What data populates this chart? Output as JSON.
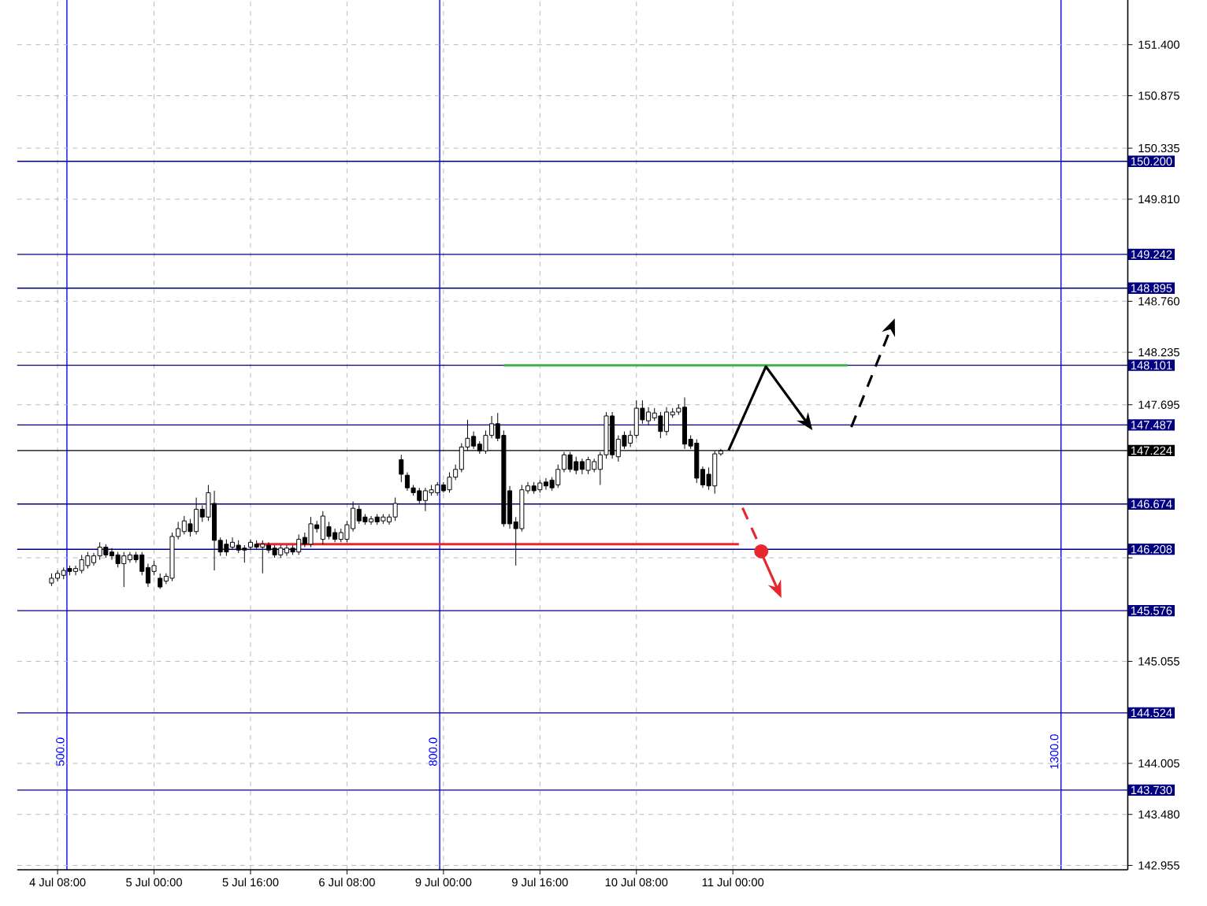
{
  "chart_data": {
    "type": "candlestick",
    "categories": [
      null,
      "4 Jul 08:00",
      null,
      null,
      null,
      null,
      null,
      null,
      null,
      null,
      null,
      null,
      null,
      null,
      null,
      null,
      null,
      "5 Jul 00:00",
      null,
      null,
      null,
      null,
      null,
      null,
      null,
      null,
      null,
      null,
      null,
      null,
      null,
      null,
      null,
      "5 Jul 16:00",
      null,
      null,
      null,
      null,
      null,
      null,
      null,
      null,
      null,
      null,
      null,
      null,
      null,
      null,
      null,
      "6 Jul 08:00",
      null,
      null,
      null,
      null,
      null,
      null,
      null,
      null,
      null,
      null,
      null,
      null,
      null,
      null,
      null,
      "9 Jul 00:00",
      null,
      null,
      null,
      null,
      null,
      null,
      null,
      null,
      null,
      null,
      null,
      null,
      null,
      null,
      null,
      "9 Jul 16:00",
      null,
      null,
      null,
      null,
      null,
      null,
      null,
      null,
      null,
      null,
      null,
      null,
      null,
      null,
      null,
      "10 Jul 08:00",
      null,
      null,
      null,
      null,
      null,
      null,
      null,
      null,
      null,
      null,
      null,
      null,
      null,
      null,
      null,
      "11 Jul 00:00",
      null,
      null,
      null,
      null,
      null,
      null,
      null,
      null,
      null,
      null,
      null,
      null,
      null,
      null,
      null,
      null,
      null,
      null,
      null,
      null,
      null,
      null,
      null,
      null,
      null,
      null,
      null,
      null,
      null,
      null,
      null,
      null,
      null,
      null,
      null,
      null,
      null,
      null,
      null,
      null,
      null,
      null,
      null,
      null,
      null,
      null,
      null,
      null,
      null,
      null,
      null,
      null,
      null,
      null,
      null,
      null,
      null,
      null,
      null,
      null,
      null,
      null,
      null,
      null,
      null
    ],
    "ohlc": [
      [
        145.86,
        145.96,
        145.83,
        145.91
      ],
      [
        145.91,
        145.99,
        145.88,
        145.96
      ],
      [
        145.94,
        146.02,
        145.9,
        145.99
      ],
      [
        146.01,
        146.04,
        145.94,
        145.98
      ],
      [
        145.98,
        146.04,
        145.94,
        146.01
      ],
      [
        145.99,
        146.15,
        145.96,
        146.1
      ],
      [
        146.04,
        146.18,
        146.01,
        146.14
      ],
      [
        146.07,
        146.17,
        146.04,
        146.14
      ],
      [
        146.14,
        146.28,
        146.1,
        146.23
      ],
      [
        146.23,
        146.26,
        146.12,
        146.15
      ],
      [
        146.18,
        146.22,
        146.1,
        146.14
      ],
      [
        146.15,
        146.18,
        146.02,
        146.06
      ],
      [
        146.06,
        146.18,
        145.82,
        146.14
      ],
      [
        146.1,
        146.18,
        146.07,
        146.15
      ],
      [
        146.15,
        146.18,
        146.07,
        146.1
      ],
      [
        146.15,
        146.18,
        145.94,
        145.98
      ],
      [
        146.02,
        146.06,
        145.82,
        145.86
      ],
      [
        145.98,
        146.09,
        145.94,
        146.04
      ],
      [
        145.91,
        145.96,
        145.8,
        145.82
      ],
      [
        145.88,
        145.96,
        145.85,
        145.93
      ],
      [
        145.91,
        146.38,
        145.88,
        146.34
      ],
      [
        146.34,
        146.49,
        146.31,
        146.42
      ],
      [
        146.39,
        146.55,
        146.36,
        146.5
      ],
      [
        146.47,
        146.52,
        146.34,
        146.39
      ],
      [
        146.39,
        146.74,
        146.36,
        146.62
      ],
      [
        146.62,
        146.66,
        146.49,
        146.54
      ],
      [
        146.54,
        146.87,
        146.5,
        146.79
      ],
      [
        146.68,
        146.81,
        145.99,
        146.3
      ],
      [
        146.3,
        146.33,
        146.14,
        146.18
      ],
      [
        146.26,
        146.31,
        146.14,
        146.18
      ],
      [
        146.23,
        146.33,
        146.2,
        146.28
      ],
      [
        146.25,
        146.3,
        146.17,
        146.2
      ],
      [
        146.22,
        146.25,
        146.07,
        146.2
      ],
      [
        146.23,
        146.31,
        146.2,
        146.28
      ],
      [
        146.26,
        146.3,
        146.2,
        146.23
      ],
      [
        146.23,
        146.3,
        145.96,
        146.26
      ],
      [
        146.25,
        146.28,
        146.17,
        146.2
      ],
      [
        146.22,
        146.25,
        146.12,
        146.15
      ],
      [
        146.15,
        146.25,
        146.12,
        146.22
      ],
      [
        146.17,
        146.25,
        146.14,
        146.22
      ],
      [
        146.22,
        146.25,
        146.15,
        146.18
      ],
      [
        146.18,
        146.36,
        146.15,
        146.31
      ],
      [
        146.33,
        146.38,
        146.23,
        146.26
      ],
      [
        146.26,
        146.54,
        146.23,
        146.47
      ],
      [
        146.46,
        146.5,
        146.38,
        146.42
      ],
      [
        146.31,
        146.6,
        146.26,
        146.55
      ],
      [
        146.44,
        146.49,
        146.31,
        146.34
      ],
      [
        146.38,
        146.42,
        146.28,
        146.31
      ],
      [
        146.31,
        146.42,
        146.28,
        146.38
      ],
      [
        146.31,
        146.5,
        146.28,
        146.46
      ],
      [
        146.42,
        146.7,
        146.39,
        146.63
      ],
      [
        146.62,
        146.66,
        146.47,
        146.5
      ],
      [
        146.54,
        146.57,
        146.46,
        146.49
      ],
      [
        146.49,
        146.55,
        146.46,
        146.52
      ],
      [
        146.54,
        146.57,
        146.46,
        146.49
      ],
      [
        146.5,
        146.57,
        146.47,
        146.54
      ],
      [
        146.49,
        146.57,
        146.46,
        146.54
      ],
      [
        146.54,
        146.74,
        146.5,
        146.68
      ],
      [
        147.13,
        147.18,
        146.9,
        146.98
      ],
      [
        146.97,
        147.0,
        146.81,
        146.84
      ],
      [
        146.84,
        146.87,
        146.76,
        146.79
      ],
      [
        146.81,
        146.84,
        146.68,
        146.71
      ],
      [
        146.71,
        146.84,
        146.6,
        146.81
      ],
      [
        146.79,
        146.87,
        146.76,
        146.82
      ],
      [
        146.79,
        146.9,
        146.76,
        146.87
      ],
      [
        146.87,
        146.9,
        146.79,
        146.81
      ],
      [
        146.82,
        147.0,
        146.79,
        146.95
      ],
      [
        146.95,
        147.08,
        146.92,
        147.03
      ],
      [
        147.03,
        147.3,
        147.0,
        147.26
      ],
      [
        147.26,
        147.54,
        147.22,
        147.35
      ],
      [
        147.37,
        147.42,
        147.24,
        147.27
      ],
      [
        147.29,
        147.32,
        147.19,
        147.22
      ],
      [
        147.22,
        147.43,
        147.19,
        147.38
      ],
      [
        147.38,
        147.58,
        147.35,
        147.5
      ],
      [
        147.5,
        147.61,
        147.32,
        147.35
      ],
      [
        147.38,
        147.43,
        146.44,
        146.47
      ],
      [
        146.81,
        146.86,
        146.42,
        146.47
      ],
      [
        146.49,
        146.54,
        146.04,
        146.42
      ],
      [
        146.42,
        146.87,
        146.39,
        146.82
      ],
      [
        146.81,
        146.9,
        146.78,
        146.86
      ],
      [
        146.86,
        146.9,
        146.78,
        146.81
      ],
      [
        146.82,
        146.92,
        146.79,
        146.89
      ],
      [
        146.9,
        146.94,
        146.82,
        146.86
      ],
      [
        146.92,
        146.95,
        146.81,
        146.84
      ],
      [
        146.87,
        147.08,
        146.84,
        147.03
      ],
      [
        147.03,
        147.21,
        147.0,
        147.18
      ],
      [
        147.18,
        147.21,
        147.0,
        147.03
      ],
      [
        147.11,
        147.16,
        146.98,
        147.02
      ],
      [
        147.11,
        147.14,
        146.98,
        147.03
      ],
      [
        147.02,
        147.16,
        146.98,
        147.13
      ],
      [
        147.03,
        147.14,
        147.0,
        147.11
      ],
      [
        147.03,
        147.21,
        146.87,
        147.18
      ],
      [
        147.18,
        147.62,
        147.14,
        147.58
      ],
      [
        147.58,
        147.62,
        147.14,
        147.18
      ],
      [
        147.16,
        147.38,
        147.11,
        147.34
      ],
      [
        147.38,
        147.42,
        147.24,
        147.27
      ],
      [
        147.3,
        147.43,
        147.26,
        147.38
      ],
      [
        147.38,
        147.74,
        147.35,
        147.66
      ],
      [
        147.66,
        147.74,
        147.5,
        147.54
      ],
      [
        147.53,
        147.67,
        147.48,
        147.62
      ],
      [
        147.56,
        147.66,
        147.53,
        147.61
      ],
      [
        147.58,
        147.62,
        147.35,
        147.42
      ],
      [
        147.42,
        147.67,
        147.38,
        147.62
      ],
      [
        147.59,
        147.66,
        147.56,
        147.62
      ],
      [
        147.62,
        147.7,
        147.59,
        147.66
      ],
      [
        147.67,
        147.77,
        147.24,
        147.29
      ],
      [
        147.34,
        147.38,
        147.24,
        147.27
      ],
      [
        147.3,
        147.34,
        146.89,
        146.94
      ],
      [
        147.03,
        147.06,
        146.84,
        146.87
      ],
      [
        146.98,
        147.05,
        146.82,
        146.86
      ],
      [
        146.86,
        147.22,
        146.78,
        147.19
      ],
      [
        147.19,
        147.24,
        147.17,
        147.22
      ],
      null,
      null,
      null,
      null,
      null,
      null,
      null,
      null,
      null,
      null,
      null,
      null,
      null,
      null,
      null,
      null,
      null,
      null,
      null,
      null,
      null,
      null,
      null,
      null,
      null,
      null,
      null,
      null,
      null,
      null,
      null,
      null,
      null,
      null,
      null,
      null,
      null,
      null,
      null,
      null,
      null,
      null,
      null,
      null,
      null,
      null,
      null,
      null,
      null,
      null,
      null,
      null,
      null,
      null,
      null,
      null,
      null,
      null,
      null,
      null,
      null,
      null,
      null,
      null,
      null,
      null,
      null
    ],
    "series": [
      {
        "type": "line",
        "color": "#3cb54a",
        "values": [
          null,
          null,
          null,
          null,
          null,
          null,
          null,
          null,
          null,
          null,
          null,
          null,
          null,
          null,
          null,
          null,
          null,
          null,
          null,
          null,
          null,
          null,
          null,
          null,
          null,
          null,
          null,
          null,
          null,
          null,
          null,
          null,
          null,
          null,
          null,
          null,
          null,
          null,
          null,
          null,
          null,
          null,
          null,
          null,
          null,
          null,
          null,
          null,
          null,
          null,
          null,
          null,
          null,
          null,
          null,
          null,
          null,
          null,
          null,
          null,
          null,
          null,
          null,
          null,
          null,
          null,
          null,
          null,
          null,
          null,
          null,
          null,
          null,
          null,
          null,
          148.1,
          148.1,
          148.1,
          148.1,
          148.1,
          148.1,
          148.1,
          148.1,
          148.1,
          148.1,
          148.1,
          148.1,
          148.1,
          148.1,
          148.1,
          148.1,
          148.1,
          148.1,
          148.1,
          148.1,
          148.1,
          148.1,
          148.1,
          148.1,
          148.1,
          148.1,
          148.1,
          148.1,
          148.1,
          148.1,
          148.1,
          148.1,
          148.1,
          148.1,
          148.1,
          148.1,
          148.1,
          148.1,
          148.1,
          148.1,
          148.1,
          148.1,
          148.1,
          148.1,
          148.1,
          148.1,
          148.1,
          148.1,
          148.1,
          148.1,
          148.1,
          148.1,
          148.1,
          148.1,
          148.1,
          148.1,
          148.1,
          148.1,
          null,
          null,
          null,
          null,
          null,
          null,
          null,
          null,
          null,
          null,
          null,
          null,
          null,
          null,
          null,
          null,
          null,
          null,
          null,
          null,
          null,
          null,
          null,
          null,
          null,
          null,
          null,
          null,
          null,
          null,
          null,
          null,
          null,
          null,
          null,
          null,
          null,
          null,
          null,
          null,
          null,
          null,
          null,
          null,
          null,
          null
        ]
      },
      {
        "type": "line",
        "color": "#e8262e",
        "values": [
          null,
          null,
          null,
          null,
          null,
          null,
          null,
          null,
          null,
          null,
          null,
          null,
          null,
          null,
          null,
          null,
          null,
          null,
          null,
          null,
          null,
          null,
          null,
          null,
          null,
          null,
          null,
          null,
          null,
          null,
          null,
          null,
          null,
          null,
          146.26,
          146.26,
          146.26,
          146.26,
          146.26,
          146.26,
          146.26,
          146.26,
          146.26,
          146.26,
          146.26,
          146.26,
          146.26,
          146.26,
          146.26,
          146.26,
          146.26,
          146.26,
          146.26,
          146.26,
          146.26,
          146.26,
          146.26,
          146.26,
          146.26,
          146.26,
          146.26,
          146.26,
          146.26,
          146.26,
          146.26,
          146.26,
          146.26,
          146.26,
          146.26,
          146.26,
          146.26,
          146.26,
          146.26,
          146.26,
          146.26,
          146.26,
          146.26,
          146.26,
          146.26,
          146.26,
          146.26,
          146.26,
          146.26,
          146.26,
          146.26,
          146.26,
          146.26,
          146.26,
          146.26,
          146.26,
          146.26,
          146.26,
          146.26,
          146.26,
          146.26,
          146.26,
          146.26,
          146.26,
          146.26,
          146.26,
          146.26,
          146.26,
          146.26,
          146.26,
          146.26,
          146.26,
          146.26,
          146.26,
          146.26,
          146.26,
          146.26,
          146.26,
          146.26,
          146.26,
          146.26,
          null,
          null,
          null,
          null,
          null,
          null,
          null,
          null,
          null,
          null,
          null,
          null,
          null,
          null,
          null,
          null,
          null,
          null,
          null,
          null,
          null,
          null,
          null,
          null,
          null,
          null,
          null,
          null,
          null,
          null,
          null,
          null,
          null,
          null,
          null,
          null,
          null,
          null,
          null,
          null,
          null,
          null,
          null,
          null,
          null,
          null,
          null,
          null,
          null,
          null,
          null,
          null,
          null,
          null,
          null,
          null,
          null,
          null,
          null,
          null,
          null,
          null,
          null,
          null
        ]
      }
    ],
    "ylim": [
      142.91,
      151.86
    ],
    "yticks": [
      {
        "value": 142.955,
        "label": "142.955"
      },
      {
        "value": 143.48,
        "label": "143.480"
      },
      {
        "value": 144.005,
        "label": "144.005"
      },
      {
        "value": 145.055,
        "label": "145.055"
      },
      {
        "value": 146.12,
        "label": null
      },
      {
        "value": 147.695,
        "label": "147.695"
      },
      {
        "value": 148.235,
        "label": "148.235"
      },
      {
        "value": 148.76,
        "label": "148.760"
      },
      {
        "value": 149.81,
        "label": "149.810"
      },
      {
        "value": 150.335,
        "label": "150.335"
      },
      {
        "value": 150.875,
        "label": "150.875"
      },
      {
        "value": 151.4,
        "label": "151.400"
      }
    ],
    "grid": true,
    "annotations": [
      "500.0",
      "800.0",
      "1300.0"
    ],
    "ref_lines": [
      {
        "axis": "y",
        "value": 150.2,
        "label": "150.200",
        "color": "#000080"
      },
      {
        "axis": "y",
        "value": 149.242,
        "label": "149.242",
        "color": "#000080"
      },
      {
        "axis": "y",
        "value": 148.895,
        "label": "148.895",
        "color": "#000080"
      },
      {
        "axis": "y",
        "value": 148.101,
        "label": "148.101",
        "color": "#000080"
      },
      {
        "axis": "y",
        "value": 147.487,
        "label": "147.487",
        "color": "#000080"
      },
      {
        "axis": "y",
        "value": 147.224,
        "label": "147.224",
        "color": "#000000"
      },
      {
        "axis": "y",
        "value": 146.674,
        "label": "146.674",
        "color": "#000080"
      },
      {
        "axis": "y",
        "value": 146.208,
        "label": "146.208",
        "color": "#000080"
      },
      {
        "axis": "y",
        "value": 145.576,
        "label": "145.576",
        "color": "#000080"
      },
      {
        "axis": "y",
        "value": 144.524,
        "label": "144.524",
        "color": "#000080"
      },
      {
        "axis": "y",
        "value": 143.73,
        "label": "143.730",
        "color": "#000080"
      }
    ]
  }
}
